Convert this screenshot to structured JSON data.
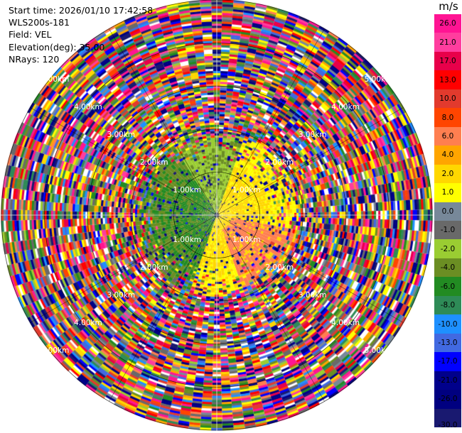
{
  "header": {
    "start_time": "Start time: 2026/01/10 17:42:58",
    "instrument": "WLS200s-181",
    "field": "Field: VEL",
    "elevation": "Elevation(deg): 35.00",
    "nrays": "NRays: 120"
  },
  "chart_data": {
    "type": "heatmap",
    "projection": "polar",
    "title": "",
    "field": "VEL",
    "elevation_deg": 35.0,
    "n_rays": 120,
    "max_range_km": 5.0,
    "range_rings_km": [
      1,
      2,
      3,
      4,
      5
    ],
    "range_ring_labels": [
      "1.00km",
      "2.00km",
      "3.00km",
      "4.00km",
      "5.00km"
    ],
    "label_azimuths_deg": [
      -40,
      -70,
      225,
      135,
      45
    ],
    "clear_air_range_km": 1.9,
    "colorbar": {
      "unit": "m/s",
      "ticks": [
        "26.0",
        "21.0",
        "17.0",
        "13.0",
        "10.0",
        "8.0",
        "6.0",
        "4.0",
        "2.0",
        "1.0",
        "0.0",
        "-1.0",
        "-2.0",
        "-4.0",
        "-6.0",
        "-8.0",
        "-10.0",
        "-13.0",
        "-17.0",
        "-21.0",
        "-26.0",
        "-30.0"
      ],
      "colors": [
        "#ff1493",
        "#ff3d9e",
        "#e8004a",
        "#ff0000",
        "#e23a2d",
        "#ff4500",
        "#ff7f50",
        "#ffa500",
        "#ffd700",
        "#ffff00",
        "#778899",
        "#696969",
        "#9acd32",
        "#6b8e23",
        "#228b22",
        "#2e8b57",
        "#1e90ff",
        "#4169e1",
        "#0000ff",
        "#00008b",
        "#000080",
        "#191970"
      ]
    },
    "near_field_pattern": {
      "west": "#228b22",
      "west_far": "#6b8e23",
      "east": "#ffd700",
      "east_far": "#ffff00",
      "southeast": "#ff7f50",
      "north": "#9acd32"
    }
  }
}
